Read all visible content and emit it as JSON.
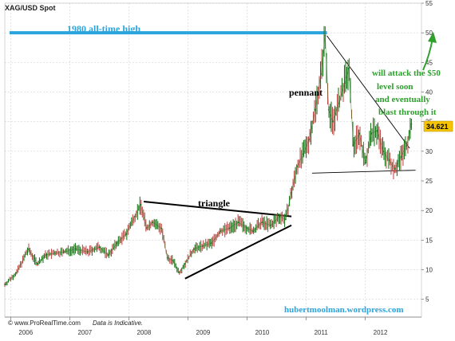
{
  "chart_data": {
    "type": "line",
    "title": "XAG/USD Spot",
    "xlabel": "",
    "ylabel": "",
    "x_tick_labels": [
      "2006",
      "2007",
      "2008",
      "2009",
      "2010",
      "2011",
      "2012"
    ],
    "x_ticks": [
      2006.0,
      2007.0,
      2008.0,
      2009.0,
      2010.0,
      2011.0,
      2012.0
    ],
    "xlim": [
      2005.9,
      2012.95
    ],
    "y_ticks": [
      5,
      10,
      15,
      20,
      25,
      30,
      35,
      40,
      45,
      50,
      55
    ],
    "ylim": [
      2,
      55
    ],
    "grid": true,
    "series": [
      {
        "x": [
          2005.9,
          2006.1,
          2006.3,
          2006.45,
          2006.6,
          2006.75,
          2006.9,
          2007.1,
          2007.3,
          2007.5,
          2007.65,
          2007.8,
          2007.95,
          2008.1,
          2008.2,
          2008.3,
          2008.4,
          2008.55,
          2008.65,
          2008.75,
          2008.85,
          2008.95,
          2009.1,
          2009.25,
          2009.4,
          2009.55,
          2009.7,
          2009.85,
          2010.0,
          2010.1,
          2010.25,
          2010.4,
          2010.55,
          2010.65,
          2010.75,
          2010.85,
          2010.95,
          2011.05,
          2011.15,
          2011.25,
          2011.32,
          2011.38,
          2011.45,
          2011.55,
          2011.65,
          2011.72,
          2011.8,
          2011.9,
          2012.0,
          2012.1,
          2012.2,
          2012.3,
          2012.4,
          2012.5,
          2012.6,
          2012.7,
          2012.78
        ],
        "values": [
          7.5,
          9.5,
          13.5,
          11.0,
          12.5,
          12.8,
          13.0,
          13.5,
          13.0,
          13.8,
          12.5,
          14.5,
          16.0,
          19.0,
          21.0,
          17.0,
          18.0,
          17.0,
          12.0,
          11.5,
          9.5,
          11.0,
          13.5,
          14.0,
          14.5,
          16.5,
          17.0,
          18.0,
          17.0,
          16.5,
          18.0,
          17.5,
          19.0,
          18.5,
          23.0,
          27.5,
          29.5,
          32.0,
          37.0,
          43.0,
          49.5,
          37.0,
          35.0,
          38.0,
          41.5,
          44.0,
          31.0,
          33.0,
          28.0,
          33.0,
          33.5,
          30.0,
          28.5,
          27.0,
          29.0,
          31.0,
          34.6
        ]
      }
    ],
    "current_price": "34.621",
    "annotations": {
      "ath_label": "1980 all-time high",
      "triangle_label": "triangle",
      "pennant_label": "pennant",
      "forecast_line1": "will attack the $50",
      "forecast_line2": "level soon",
      "forecast_line3": "and eventually",
      "forecast_line4": "blast through it",
      "website": "hubertmoolman.wordpress.com",
      "copyright": "© www.ProRealTime.com",
      "disclaimer": "Data is Indicative."
    },
    "reference_lines": {
      "ath_level": 50,
      "triangle_top": [
        [
          2008.25,
          21.5
        ],
        [
          2010.75,
          19.0
        ]
      ],
      "triangle_bottom": [
        [
          2008.95,
          8.5
        ],
        [
          2010.75,
          17.5
        ]
      ],
      "pennant_top": [
        [
          2011.35,
          49.5
        ],
        [
          2012.75,
          30.5
        ]
      ],
      "pennant_bottom": [
        [
          2011.1,
          26.3
        ],
        [
          2012.85,
          26.8
        ]
      ]
    },
    "colors": {
      "price": "#1e7a1e",
      "ath_line": "#2aa4dc",
      "ath_text": "#2aa4dc",
      "trend": "#000000",
      "forecast": "#2ea02e",
      "website": "#2aa4dc",
      "price_tag": "#f6c400"
    }
  }
}
